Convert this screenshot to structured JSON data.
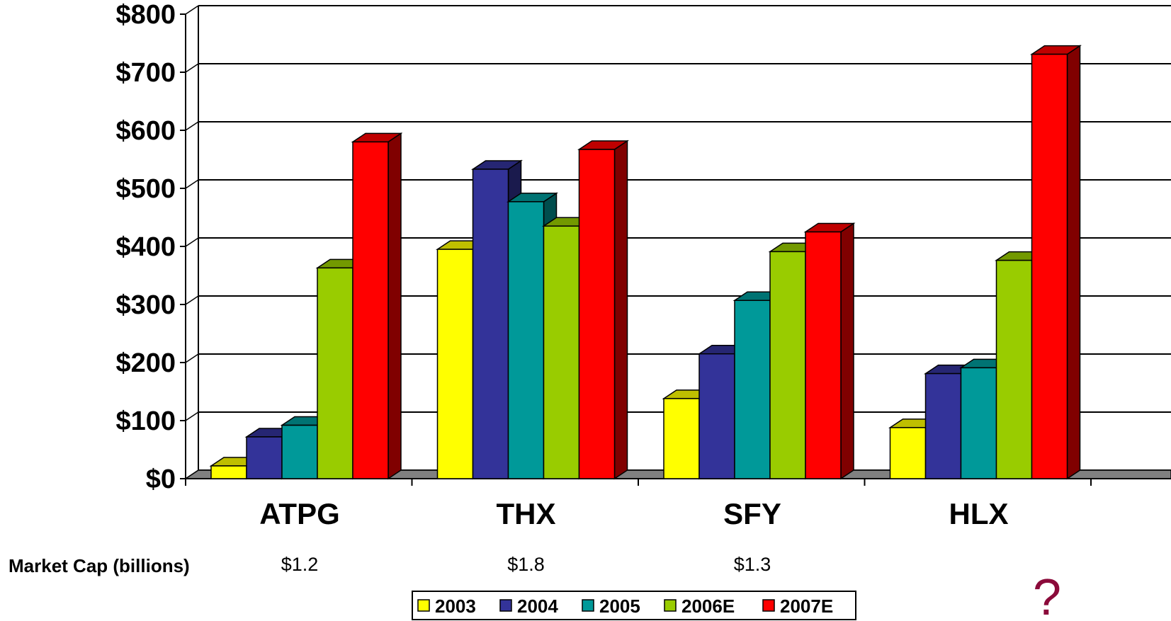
{
  "chart_data": {
    "type": "bar",
    "categories": [
      "ATPG",
      "THX",
      "SFY",
      "HLX"
    ],
    "y_ticks": [
      "$0",
      "$100",
      "$200",
      "$300",
      "$400",
      "$500",
      "$600",
      "$700",
      "$800"
    ],
    "ylim": [
      0,
      800
    ],
    "grid": true,
    "legend_position": "bottom",
    "series": [
      {
        "name": "2003",
        "color": "#ffff00",
        "values": [
          22,
          395,
          138,
          88
        ]
      },
      {
        "name": "2004",
        "color": "#333399",
        "values": [
          72,
          533,
          215,
          181
        ]
      },
      {
        "name": "2005",
        "color": "#009999",
        "values": [
          92,
          477,
          307,
          191
        ]
      },
      {
        "name": "2006E",
        "color": "#99cc00",
        "values": [
          363,
          435,
          391,
          376
        ]
      },
      {
        "name": "2007E",
        "color": "#ff0000",
        "values": [
          580,
          567,
          425,
          731
        ]
      }
    ],
    "market_cap_label": "Market Cap (billions)",
    "market_caps": [
      "$1.2",
      "$1.8",
      "$1.3",
      ""
    ],
    "hlx_annotation": "?"
  }
}
